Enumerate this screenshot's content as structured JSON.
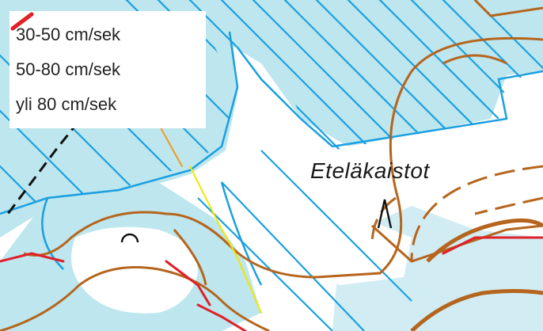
{
  "legend": {
    "title": "",
    "items": [
      {
        "label": "30-50 cm/sek",
        "color": "#f2e600"
      },
      {
        "label": "50-80 cm/sek",
        "color": "#f59a1c"
      },
      {
        "label": "yli 80 cm/sek",
        "color": "#e0202a"
      }
    ]
  },
  "map": {
    "place_label": "Eteläkaistot",
    "colors": {
      "water": "#bde6ee",
      "hatch": "#1aa0e0",
      "contour": "#b5651d",
      "path": "#111111"
    }
  }
}
